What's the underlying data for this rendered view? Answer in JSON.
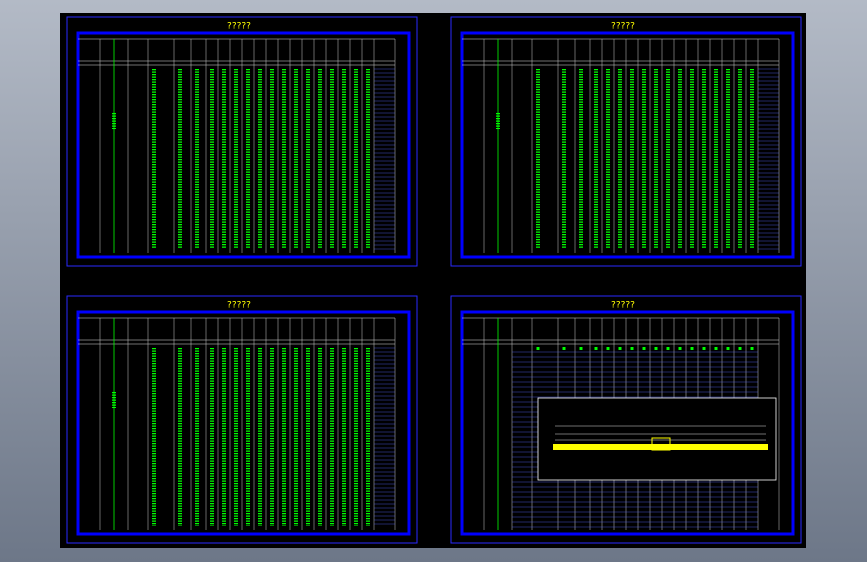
{
  "sheets": [
    {
      "title": "?????"
    },
    {
      "title": "?????"
    },
    {
      "title": "?????"
    },
    {
      "title": "?????"
    }
  ]
}
